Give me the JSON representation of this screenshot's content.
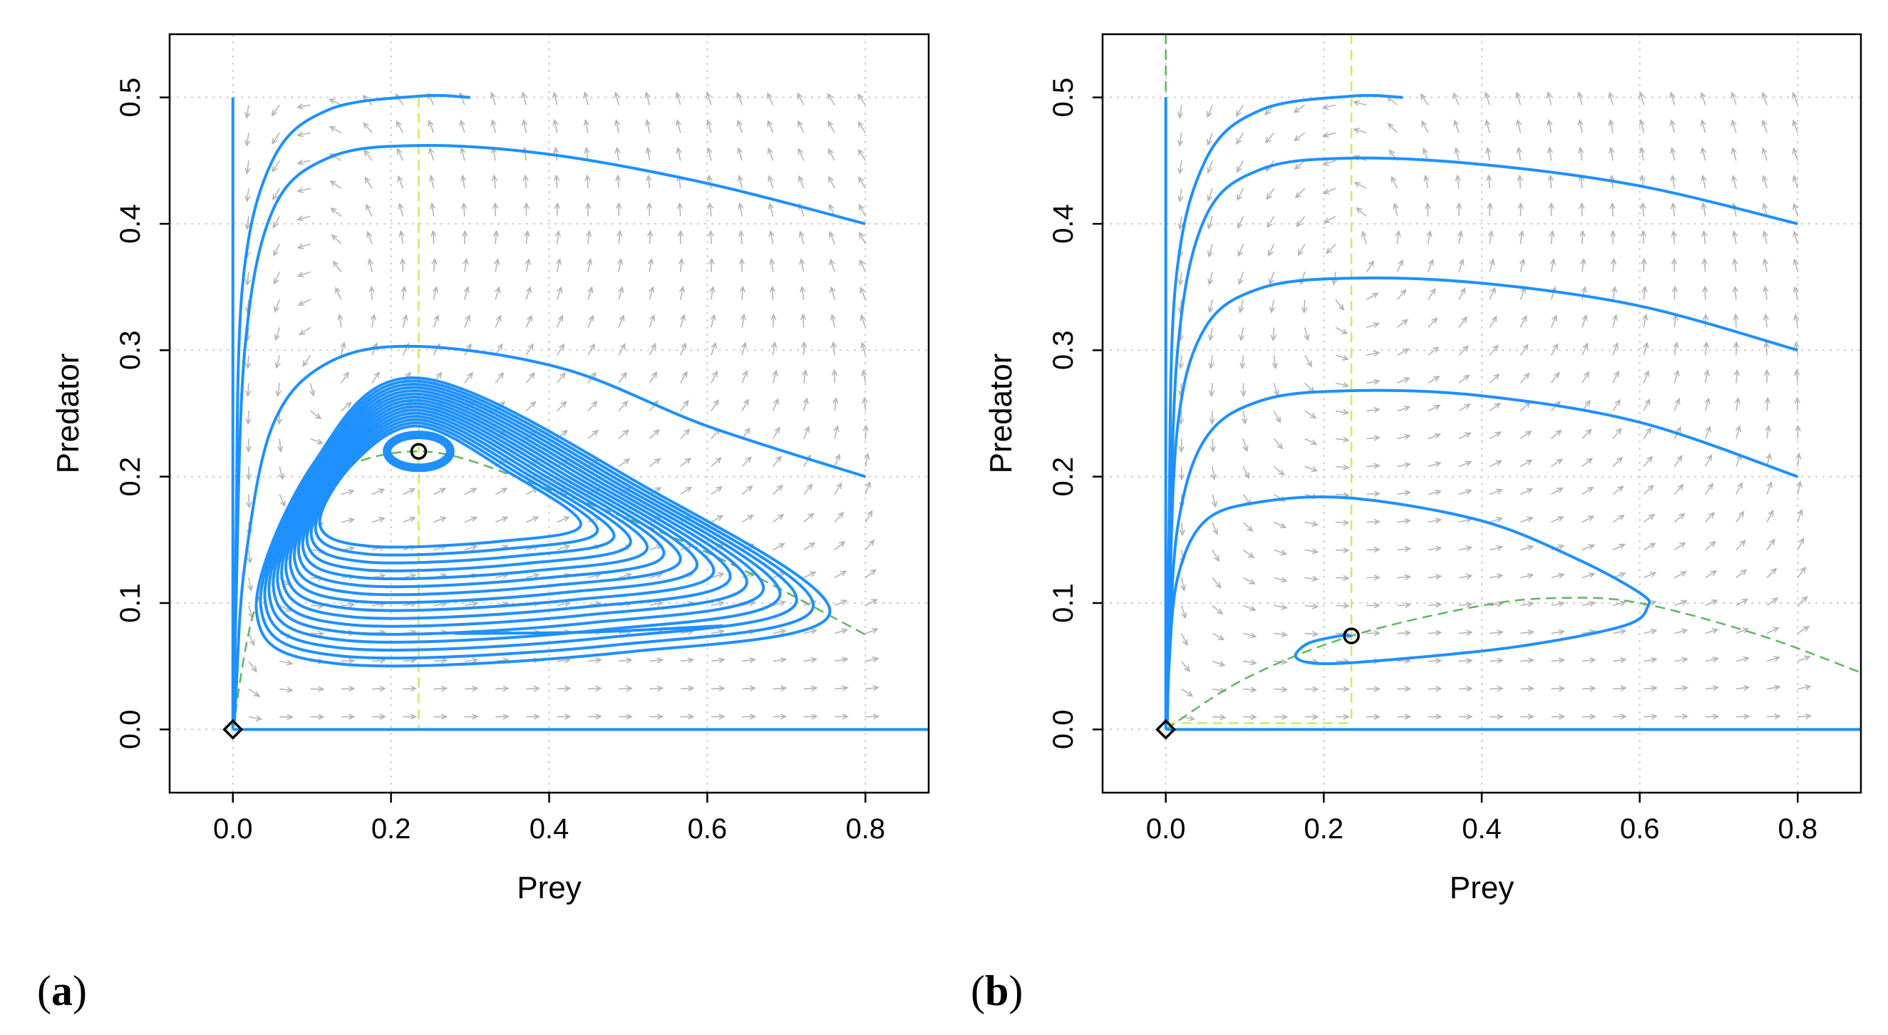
{
  "chart_data": [
    {
      "type": "line",
      "subtype": "phase-portrait",
      "panel_label": "a",
      "xlabel": "Prey",
      "ylabel": "Predator",
      "xlim": [
        -0.08,
        0.88
      ],
      "ylim": [
        -0.05,
        0.55
      ],
      "xticks": [
        "0.0",
        "0.2",
        "0.4",
        "0.6",
        "0.8"
      ],
      "yticks": [
        "0.0",
        "0.1",
        "0.2",
        "0.3",
        "0.4",
        "0.5"
      ],
      "grid": true,
      "colors": {
        "trajectory": "#1e90ff",
        "prey_nullcline": "#5cb85c",
        "predator_nullcline": "#d4e85c",
        "vector_field": "#b5b5b5"
      },
      "nullclines": {
        "predator": {
          "style": "dashed",
          "x": 0.235
        },
        "prey": {
          "style": "dashed",
          "points": [
            [
              0.0,
              0.0
            ],
            [
              0.03,
              0.1
            ],
            [
              0.1,
              0.19
            ],
            [
              0.235,
              0.22
            ],
            [
              0.4,
              0.19
            ],
            [
              0.6,
              0.14
            ],
            [
              0.8,
              0.075
            ]
          ]
        }
      },
      "equilibria": [
        {
          "name": "origin",
          "marker": "diamond",
          "x": 0.0,
          "y": 0.0
        },
        {
          "name": "interior",
          "marker": "circle",
          "x": 0.235,
          "y": 0.22
        }
      ],
      "axis_trajectories": [
        {
          "name": "predator-axis",
          "x": [
            0.0,
            0.0
          ],
          "y": [
            0.5,
            0.0
          ]
        },
        {
          "name": "prey-axis",
          "x": [
            0.0,
            0.88
          ],
          "y": [
            0.0,
            0.0
          ]
        }
      ],
      "trajectories": [
        {
          "name": "start (0.3, 0.5)",
          "points": [
            [
              0.3,
              0.5
            ],
            [
              0.235,
              0.501
            ],
            [
              0.12,
              0.49
            ],
            [
              0.05,
              0.45
            ],
            [
              0.012,
              0.35
            ],
            [
              0.004,
              0.15
            ],
            [
              0.002,
              0.02
            ]
          ]
        },
        {
          "name": "start (0.8, 0.4)",
          "points": [
            [
              0.8,
              0.4
            ],
            [
              0.6,
              0.432
            ],
            [
              0.4,
              0.455
            ],
            [
              0.235,
              0.462
            ],
            [
              0.12,
              0.452
            ],
            [
              0.05,
              0.41
            ],
            [
              0.015,
              0.3
            ],
            [
              0.004,
              0.1
            ],
            [
              0.002,
              0.01
            ]
          ]
        },
        {
          "name": "start (0.8, 0.2)",
          "points": [
            [
              0.8,
              0.2
            ],
            [
              0.6,
              0.24
            ],
            [
              0.42,
              0.285
            ],
            [
              0.235,
              0.303
            ],
            [
              0.12,
              0.29
            ],
            [
              0.05,
              0.24
            ],
            [
              0.015,
              0.13
            ],
            [
              0.004,
              0.03
            ],
            [
              0.002,
              0.005
            ]
          ]
        },
        {
          "name": "limit-cycle band",
          "kind": "cycle-band",
          "center": [
            0.235,
            0.22
          ],
          "outer": {
            "xmin": 0.03,
            "xmax": 0.755,
            "ymin": 0.052,
            "ymax": 0.278
          },
          "inner": {
            "xmin": 0.11,
            "xmax": 0.44,
            "ymin": 0.145,
            "ymax": 0.24
          },
          "loops": 16
        },
        {
          "name": "loop around equilibrium",
          "kind": "ring",
          "center": [
            0.235,
            0.22
          ],
          "rx": 0.04,
          "ry": 0.013
        }
      ]
    },
    {
      "type": "line",
      "subtype": "phase-portrait",
      "panel_label": "b",
      "xlabel": "Prey",
      "ylabel": "Predator",
      "xlim": [
        -0.08,
        0.88
      ],
      "ylim": [
        -0.05,
        0.55
      ],
      "xticks": [
        "0.0",
        "0.2",
        "0.4",
        "0.6",
        "0.8"
      ],
      "yticks": [
        "0.0",
        "0.1",
        "0.2",
        "0.3",
        "0.4",
        "0.5"
      ],
      "grid": true,
      "colors": {
        "trajectory": "#1e90ff",
        "prey_nullcline": "#5cb85c",
        "predator_nullcline": "#d4e85c",
        "vector_field": "#b5b5b5"
      },
      "nullclines": {
        "predator": {
          "style": "dashed",
          "x": 0.235,
          "foot": [
            [
              0.0,
              0.005
            ],
            [
              0.235,
              0.005
            ]
          ]
        },
        "prey_vertical": {
          "style": "dashed",
          "x": 0.0
        },
        "prey": {
          "style": "dashed",
          "points": [
            [
              0.0,
              0.0
            ],
            [
              0.1,
              0.04
            ],
            [
              0.235,
              0.074
            ],
            [
              0.4,
              0.098
            ],
            [
              0.5,
              0.104
            ],
            [
              0.6,
              0.1
            ],
            [
              0.75,
              0.075
            ],
            [
              0.88,
              0.045
            ]
          ]
        }
      },
      "equilibria": [
        {
          "name": "origin",
          "marker": "diamond",
          "x": 0.0,
          "y": 0.0
        },
        {
          "name": "interior",
          "marker": "circle",
          "x": 0.235,
          "y": 0.074
        }
      ],
      "axis_trajectories": [
        {
          "name": "predator-axis",
          "x": [
            0.0,
            0.0
          ],
          "y": [
            0.5,
            0.0
          ]
        },
        {
          "name": "prey-axis",
          "x": [
            0.0,
            0.88
          ],
          "y": [
            0.0,
            0.0
          ]
        }
      ],
      "trajectories": [
        {
          "name": "start (0.3, 0.5)",
          "points": [
            [
              0.3,
              0.5
            ],
            [
              0.235,
              0.501
            ],
            [
              0.12,
              0.49
            ],
            [
              0.05,
              0.45
            ],
            [
              0.012,
              0.35
            ],
            [
              0.004,
              0.15
            ],
            [
              0.002,
              0.02
            ]
          ]
        },
        {
          "name": "start (0.8, 0.4)",
          "points": [
            [
              0.8,
              0.4
            ],
            [
              0.6,
              0.43
            ],
            [
              0.4,
              0.447
            ],
            [
              0.235,
              0.452
            ],
            [
              0.12,
              0.443
            ],
            [
              0.05,
              0.405
            ],
            [
              0.015,
              0.3
            ],
            [
              0.004,
              0.1
            ],
            [
              0.002,
              0.01
            ]
          ]
        },
        {
          "name": "start (0.8, 0.3)",
          "points": [
            [
              0.8,
              0.3
            ],
            [
              0.6,
              0.335
            ],
            [
              0.4,
              0.353
            ],
            [
              0.235,
              0.357
            ],
            [
              0.12,
              0.349
            ],
            [
              0.05,
              0.318
            ],
            [
              0.015,
              0.24
            ],
            [
              0.004,
              0.08
            ],
            [
              0.002,
              0.01
            ]
          ]
        },
        {
          "name": "start (0.8, 0.2)",
          "points": [
            [
              0.8,
              0.2
            ],
            [
              0.6,
              0.243
            ],
            [
              0.4,
              0.264
            ],
            [
              0.235,
              0.268
            ],
            [
              0.12,
              0.26
            ],
            [
              0.05,
              0.23
            ],
            [
              0.015,
              0.16
            ],
            [
              0.004,
              0.05
            ],
            [
              0.002,
              0.005
            ]
          ]
        },
        {
          "name": "spiral into interior equilibrium",
          "points": [
            [
              0.002,
              0.005
            ],
            [
              0.004,
              0.05
            ],
            [
              0.015,
              0.12
            ],
            [
              0.05,
              0.165
            ],
            [
              0.12,
              0.18
            ],
            [
              0.235,
              0.183
            ],
            [
              0.4,
              0.165
            ],
            [
              0.52,
              0.135
            ],
            [
              0.6,
              0.108
            ],
            [
              0.61,
              0.097
            ],
            [
              0.58,
              0.082
            ],
            [
              0.45,
              0.066
            ],
            [
              0.3,
              0.056
            ],
            [
              0.2,
              0.052
            ],
            [
              0.165,
              0.057
            ],
            [
              0.18,
              0.068
            ],
            [
              0.22,
              0.074
            ],
            [
              0.235,
              0.074
            ]
          ]
        }
      ]
    }
  ]
}
